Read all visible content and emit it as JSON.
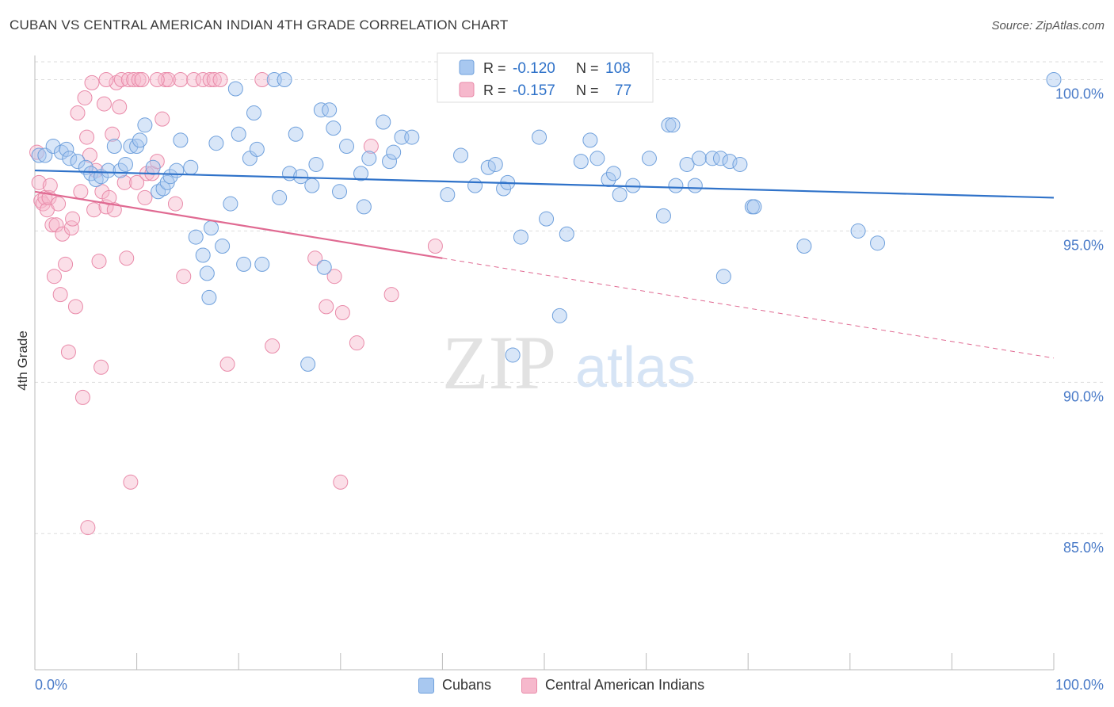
{
  "header": {
    "title": "CUBAN VS CENTRAL AMERICAN INDIAN 4TH GRADE CORRELATION CHART",
    "source": "Source: ZipAtlas.com"
  },
  "watermark": {
    "zip": "ZIP",
    "atlas": "atlas"
  },
  "colors": {
    "cubans_fill": "#a8c8f0",
    "cubans_stroke": "#6fa0dc",
    "cubans_line": "#2f72c9",
    "cai_fill": "#f6b8cc",
    "cai_stroke": "#e98aa9",
    "cai_line": "#e06a92",
    "tick_label": "#4a7bc8",
    "grid": "#dddddd"
  },
  "legend_box": {
    "rows": [
      {
        "r_label": "R = ",
        "r_value": "-0.120",
        "n_label": "N = ",
        "n_value": "108"
      },
      {
        "r_label": "R = ",
        "r_value": "-0.157",
        "n_label": "N = ",
        "n_value": "77"
      }
    ]
  },
  "legend_bottom": {
    "items": [
      "Cubans",
      "Central American Indians"
    ]
  },
  "chart_data": {
    "type": "scatter",
    "title": "CUBAN VS CENTRAL AMERICAN INDIAN 4TH GRADE CORRELATION CHART",
    "xlabel": "",
    "ylabel": "4th Grade",
    "xlim": [
      0,
      100
    ],
    "ylim": [
      80.5,
      100.8
    ],
    "x_tick_labels": [
      "0.0%",
      "100.0%"
    ],
    "y_ticks": [
      100,
      95,
      90,
      85
    ],
    "y_tick_labels": [
      "100.0%",
      "95.0%",
      "90.0%",
      "85.0%"
    ],
    "grid": true,
    "legend_placement": "top-center",
    "series": [
      {
        "name": "Cubans",
        "r": -0.12,
        "n": 108,
        "trend": {
          "x0": 0,
          "y0": 97.0,
          "x1": 100,
          "y1": 96.1,
          "dashed_from": null
        },
        "points": [
          [
            0.4,
            97.5
          ],
          [
            1.0,
            97.5
          ],
          [
            1.8,
            97.8
          ],
          [
            2.6,
            97.6
          ],
          [
            3.1,
            97.7
          ],
          [
            3.4,
            97.4
          ],
          [
            4.2,
            97.3
          ],
          [
            5.0,
            97.1
          ],
          [
            5.5,
            96.9
          ],
          [
            6.0,
            96.7
          ],
          [
            6.5,
            96.8
          ],
          [
            7.2,
            97.0
          ],
          [
            7.8,
            97.8
          ],
          [
            8.4,
            97.0
          ],
          [
            8.9,
            97.2
          ],
          [
            9.4,
            97.8
          ],
          [
            10.0,
            97.8
          ],
          [
            10.3,
            98.0
          ],
          [
            10.8,
            98.5
          ],
          [
            11.6,
            97.1
          ],
          [
            12.1,
            96.3
          ],
          [
            12.6,
            96.4
          ],
          [
            13.0,
            96.6
          ],
          [
            13.3,
            96.8
          ],
          [
            13.9,
            97.0
          ],
          [
            14.3,
            98.0
          ],
          [
            15.3,
            97.1
          ],
          [
            15.8,
            94.8
          ],
          [
            16.5,
            94.2
          ],
          [
            16.9,
            93.6
          ],
          [
            17.1,
            92.8
          ],
          [
            17.3,
            95.1
          ],
          [
            17.8,
            97.9
          ],
          [
            18.4,
            94.5
          ],
          [
            19.2,
            95.9
          ],
          [
            19.7,
            99.7
          ],
          [
            20.0,
            98.2
          ],
          [
            20.5,
            93.9
          ],
          [
            21.1,
            97.4
          ],
          [
            21.5,
            98.9
          ],
          [
            21.8,
            97.7
          ],
          [
            22.3,
            93.9
          ],
          [
            23.5,
            100.0
          ],
          [
            24.0,
            96.1
          ],
          [
            24.5,
            100.0
          ],
          [
            25.0,
            96.9
          ],
          [
            25.6,
            98.2
          ],
          [
            26.1,
            96.8
          ],
          [
            26.8,
            90.6
          ],
          [
            27.2,
            96.5
          ],
          [
            27.6,
            97.2
          ],
          [
            28.1,
            99.0
          ],
          [
            28.4,
            93.8
          ],
          [
            28.9,
            99.0
          ],
          [
            29.3,
            98.4
          ],
          [
            29.9,
            96.3
          ],
          [
            30.6,
            97.8
          ],
          [
            32.0,
            96.9
          ],
          [
            32.3,
            95.8
          ],
          [
            32.8,
            97.4
          ],
          [
            34.2,
            98.6
          ],
          [
            34.8,
            97.3
          ],
          [
            35.2,
            97.6
          ],
          [
            36.0,
            98.1
          ],
          [
            37.0,
            98.1
          ],
          [
            40.5,
            96.2
          ],
          [
            41.8,
            97.5
          ],
          [
            43.2,
            96.5
          ],
          [
            44.5,
            97.1
          ],
          [
            45.2,
            97.2
          ],
          [
            46.0,
            96.4
          ],
          [
            46.4,
            96.6
          ],
          [
            46.9,
            90.9
          ],
          [
            47.7,
            94.8
          ],
          [
            49.5,
            98.1
          ],
          [
            50.2,
            95.4
          ],
          [
            51.5,
            92.2
          ],
          [
            52.2,
            94.9
          ],
          [
            53.6,
            97.3
          ],
          [
            54.5,
            98.0
          ],
          [
            55.2,
            97.4
          ],
          [
            56.3,
            96.7
          ],
          [
            56.8,
            96.9
          ],
          [
            57.4,
            96.2
          ],
          [
            58.7,
            96.5
          ],
          [
            60.3,
            97.4
          ],
          [
            61.7,
            95.5
          ],
          [
            62.2,
            98.5
          ],
          [
            62.6,
            98.5
          ],
          [
            62.9,
            96.5
          ],
          [
            64.0,
            97.2
          ],
          [
            64.8,
            96.5
          ],
          [
            65.2,
            97.4
          ],
          [
            66.5,
            97.4
          ],
          [
            67.3,
            97.4
          ],
          [
            67.6,
            93.5
          ],
          [
            68.2,
            97.3
          ],
          [
            69.2,
            97.2
          ],
          [
            70.4,
            95.8
          ],
          [
            70.6,
            95.8
          ],
          [
            75.5,
            94.5
          ],
          [
            80.8,
            95.0
          ],
          [
            82.7,
            94.6
          ],
          [
            100.0,
            100.0
          ]
        ]
      },
      {
        "name": "Central American Indians",
        "r": -0.157,
        "n": 77,
        "trend": {
          "x0": 0,
          "y0": 96.3,
          "x1": 100,
          "y1": 90.8,
          "dashed_from": 40
        },
        "points": [
          [
            0.2,
            97.6
          ],
          [
            0.4,
            96.6
          ],
          [
            0.6,
            96.0
          ],
          [
            0.8,
            95.9
          ],
          [
            1.0,
            96.1
          ],
          [
            1.2,
            95.7
          ],
          [
            1.4,
            96.1
          ],
          [
            1.5,
            96.5
          ],
          [
            1.7,
            95.2
          ],
          [
            1.9,
            93.5
          ],
          [
            2.1,
            95.2
          ],
          [
            2.3,
            95.9
          ],
          [
            2.5,
            92.9
          ],
          [
            2.7,
            94.9
          ],
          [
            3.0,
            93.9
          ],
          [
            3.3,
            91.0
          ],
          [
            3.6,
            95.1
          ],
          [
            3.7,
            95.4
          ],
          [
            4.0,
            92.5
          ],
          [
            4.2,
            98.9
          ],
          [
            4.5,
            96.3
          ],
          [
            4.7,
            89.5
          ],
          [
            4.9,
            99.4
          ],
          [
            5.1,
            98.1
          ],
          [
            5.4,
            97.5
          ],
          [
            5.6,
            99.9
          ],
          [
            5.8,
            95.7
          ],
          [
            6.0,
            97.0
          ],
          [
            6.3,
            94.0
          ],
          [
            6.5,
            90.5
          ],
          [
            6.6,
            96.3
          ],
          [
            6.8,
            99.2
          ],
          [
            7.0,
            95.8
          ],
          [
            7.3,
            96.1
          ],
          [
            7.6,
            98.2
          ],
          [
            7.8,
            95.7
          ],
          [
            8.0,
            99.9
          ],
          [
            8.3,
            99.1
          ],
          [
            8.5,
            100.0
          ],
          [
            8.8,
            96.6
          ],
          [
            9.0,
            94.1
          ],
          [
            9.2,
            100.0
          ],
          [
            9.4,
            86.7
          ],
          [
            9.7,
            100.0
          ],
          [
            10.0,
            96.6
          ],
          [
            10.2,
            100.0
          ],
          [
            10.5,
            100.0
          ],
          [
            10.8,
            96.1
          ],
          [
            11.0,
            96.9
          ],
          [
            11.5,
            96.9
          ],
          [
            12.0,
            97.3
          ],
          [
            12.5,
            98.7
          ],
          [
            12.8,
            100.0
          ],
          [
            13.1,
            100.0
          ],
          [
            13.8,
            95.9
          ],
          [
            14.3,
            100.0
          ],
          [
            14.6,
            93.5
          ],
          [
            15.6,
            100.0
          ],
          [
            16.5,
            100.0
          ],
          [
            17.2,
            100.0
          ],
          [
            17.6,
            100.0
          ],
          [
            18.2,
            100.0
          ],
          [
            18.9,
            90.6
          ],
          [
            22.3,
            100.0
          ],
          [
            23.3,
            91.2
          ],
          [
            27.5,
            94.1
          ],
          [
            28.6,
            92.5
          ],
          [
            29.4,
            93.5
          ],
          [
            30.0,
            86.7
          ],
          [
            30.2,
            92.3
          ],
          [
            31.6,
            91.3
          ],
          [
            33.0,
            97.8
          ],
          [
            35.0,
            92.9
          ],
          [
            39.3,
            94.5
          ],
          [
            5.2,
            85.2
          ],
          [
            7.0,
            100.0
          ],
          [
            12.0,
            100.0
          ]
        ]
      }
    ]
  }
}
